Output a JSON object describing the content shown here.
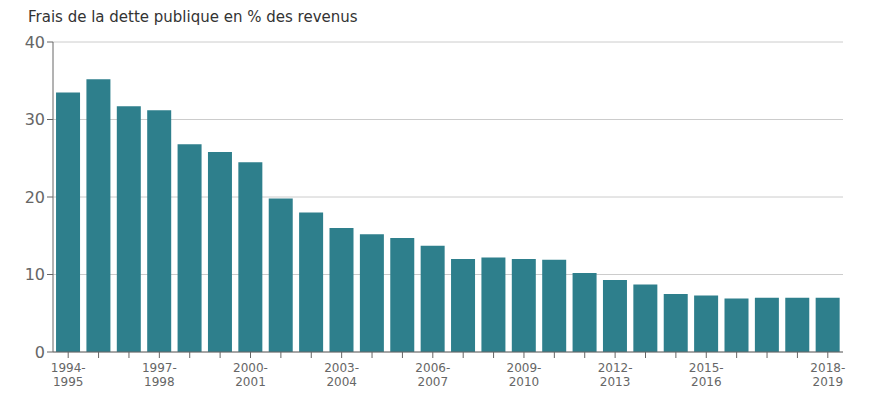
{
  "chart_data": {
    "type": "bar",
    "title": "Frais de la dette publique en % des revenus",
    "categories": [
      "1994-\n1995",
      null,
      null,
      "1997-\n1998",
      null,
      null,
      "2000-\n2001",
      null,
      null,
      "2003-\n2004",
      null,
      null,
      "2006-\n2007",
      null,
      null,
      "2009-\n2010",
      null,
      null,
      "2012-\n2013",
      null,
      null,
      "2015-\n2016",
      null,
      null,
      null,
      "2018-\n2019"
    ],
    "values": [
      33.5,
      35.2,
      31.7,
      31.2,
      26.8,
      25.8,
      24.5,
      19.8,
      18.0,
      16.0,
      15.2,
      14.7,
      13.7,
      12.0,
      12.2,
      12.0,
      11.9,
      10.2,
      9.3,
      8.7,
      7.5,
      7.3,
      6.9,
      7.0,
      7.0,
      7.0
    ],
    "color": "#2e7f8c",
    "ylim": [
      0,
      40
    ],
    "yticks": [
      0,
      10,
      20,
      30,
      40
    ],
    "grid": true
  }
}
